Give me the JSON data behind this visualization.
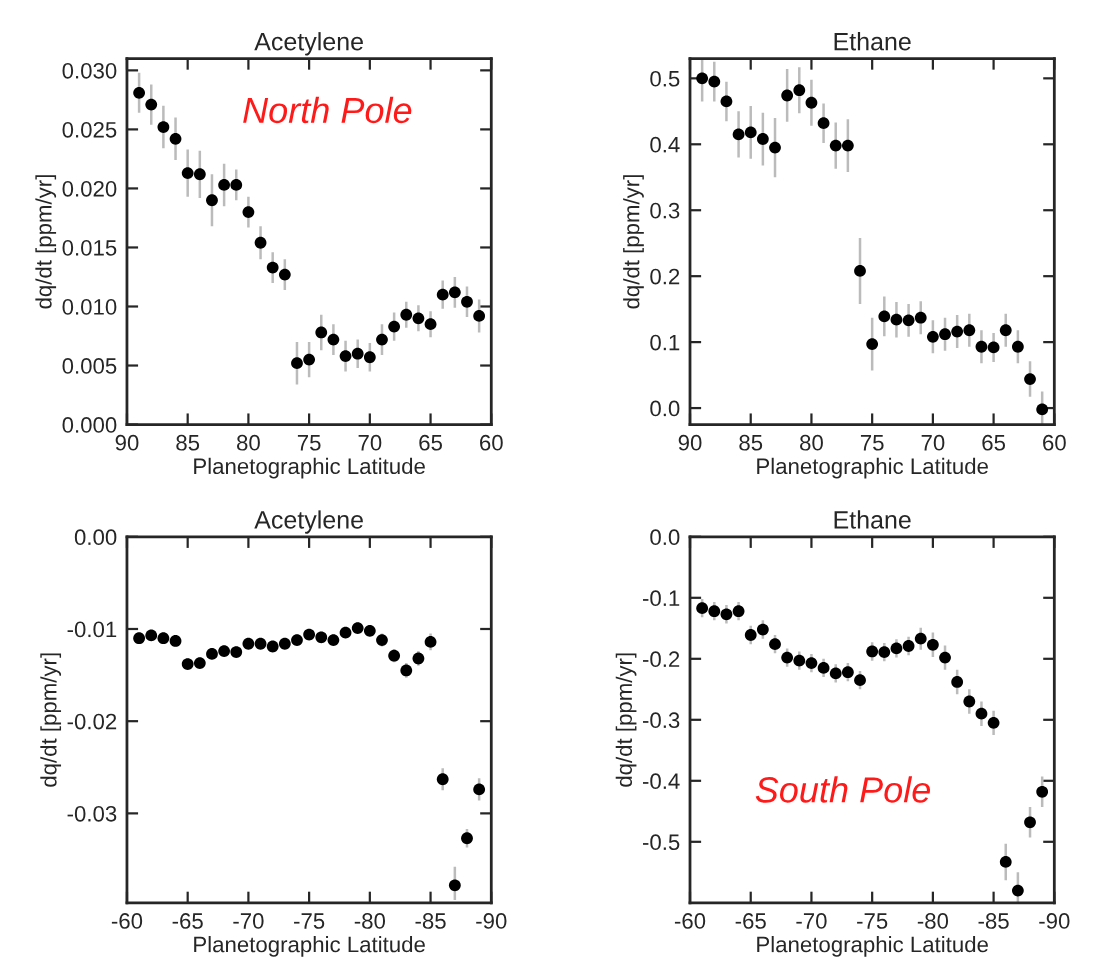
{
  "chart_data": [
    {
      "type": "scatter",
      "title": "Acetylene",
      "xlabel": "Planetographic Latitude",
      "ylabel": "dq/dt [ppm/yr]",
      "annotations": [
        "North Pole"
      ],
      "marker": "circle",
      "grid": false,
      "legend": false,
      "x": [
        89,
        88,
        87,
        86,
        85,
        84,
        83,
        82,
        81,
        80,
        79,
        78,
        77,
        76,
        75,
        74,
        73,
        72,
        71,
        70,
        69,
        68,
        67,
        66,
        65,
        64,
        63,
        62,
        61
      ],
      "series": [
        {
          "color": "#000000",
          "values": [
            0.0281,
            0.0271,
            0.0252,
            0.0242,
            0.0213,
            0.0212,
            0.019,
            0.0203,
            0.0203,
            0.018,
            0.0154,
            0.0133,
            0.0127,
            0.0052,
            0.0055,
            0.0078,
            0.0072,
            0.0058,
            0.006,
            0.0057,
            0.0072,
            0.0083,
            0.0093,
            0.009,
            0.0085,
            0.011,
            0.0112,
            0.0104,
            0.0092
          ],
          "errors": [
            0.0017,
            0.0017,
            0.0018,
            0.0018,
            0.002,
            0.002,
            0.0022,
            0.0018,
            0.0013,
            0.0013,
            0.0014,
            0.0013,
            0.0013,
            0.0018,
            0.0015,
            0.0015,
            0.0013,
            0.0013,
            0.0012,
            0.0012,
            0.0013,
            0.0012,
            0.0011,
            0.0011,
            0.0011,
            0.0012,
            0.0013,
            0.0013,
            0.0014
          ]
        }
      ],
      "xlim": [
        90,
        60
      ],
      "xticks": [
        90,
        85,
        80,
        75,
        70,
        65,
        60
      ],
      "ylim": [
        0,
        0.031
      ],
      "yticks": [
        {
          "value": 0,
          "label": "0.000"
        },
        {
          "value": 0.005,
          "label": "0.005"
        },
        {
          "value": 0.01,
          "label": "0.010"
        },
        {
          "value": 0.015,
          "label": "0.015"
        },
        {
          "value": 0.02,
          "label": "0.020"
        },
        {
          "value": 0.025,
          "label": "0.025"
        },
        {
          "value": 0.03,
          "label": "0.030"
        }
      ]
    },
    {
      "type": "scatter",
      "title": "Ethane",
      "xlabel": "Planetographic Latitude",
      "ylabel": "dq/dt [ppm/yr]",
      "marker": "circle",
      "grid": false,
      "legend": false,
      "x": [
        89,
        88,
        87,
        86,
        85,
        84,
        83,
        82,
        81,
        80,
        79,
        78,
        77,
        76,
        75,
        74,
        73,
        72,
        71,
        70,
        69,
        68,
        67,
        66,
        65,
        64,
        63,
        62,
        61
      ],
      "series": [
        {
          "color": "#000000",
          "values": [
            0.5,
            0.495,
            0.465,
            0.415,
            0.418,
            0.408,
            0.395,
            0.474,
            0.482,
            0.463,
            0.432,
            0.398,
            0.398,
            0.208,
            0.097,
            0.139,
            0.134,
            0.133,
            0.137,
            0.108,
            0.112,
            0.116,
            0.118,
            0.093,
            0.092,
            0.118,
            0.093,
            0.044,
            -0.002
          ],
          "errors": [
            0.035,
            0.03,
            0.03,
            0.035,
            0.04,
            0.04,
            0.045,
            0.04,
            0.035,
            0.035,
            0.03,
            0.035,
            0.04,
            0.05,
            0.04,
            0.03,
            0.027,
            0.025,
            0.025,
            0.025,
            0.025,
            0.025,
            0.025,
            0.025,
            0.022,
            0.025,
            0.025,
            0.027,
            0.027
          ]
        }
      ],
      "xlim": [
        90,
        60
      ],
      "xticks": [
        90,
        85,
        80,
        75,
        70,
        65,
        60
      ],
      "ylim": [
        -0.025,
        0.53
      ],
      "yticks": [
        {
          "value": 0,
          "label": "0.0"
        },
        {
          "value": 0.1,
          "label": "0.1"
        },
        {
          "value": 0.2,
          "label": "0.2"
        },
        {
          "value": 0.3,
          "label": "0.3"
        },
        {
          "value": 0.4,
          "label": "0.4"
        },
        {
          "value": 0.5,
          "label": "0.5"
        }
      ]
    },
    {
      "type": "scatter",
      "title": "Acetylene",
      "xlabel": "Planetographic Latitude",
      "ylabel": "dq/dt [ppm/yr]",
      "marker": "circle",
      "grid": false,
      "legend": false,
      "x": [
        -61,
        -62,
        -63,
        -64,
        -65,
        -66,
        -67,
        -68,
        -69,
        -70,
        -71,
        -72,
        -73,
        -74,
        -75,
        -76,
        -77,
        -78,
        -79,
        -80,
        -81,
        -82,
        -83,
        -84,
        -85,
        -86,
        -87,
        -88,
        -89
      ],
      "series": [
        {
          "color": "#000000",
          "values": [
            -0.011,
            -0.0107,
            -0.011,
            -0.0113,
            -0.0138,
            -0.0137,
            -0.0127,
            -0.0124,
            -0.0125,
            -0.0116,
            -0.0116,
            -0.0119,
            -0.0116,
            -0.0112,
            -0.0106,
            -0.0109,
            -0.0112,
            -0.0104,
            -0.0099,
            -0.0102,
            -0.0112,
            -0.0129,
            -0.0145,
            -0.0132,
            -0.0114,
            -0.0263,
            -0.0378,
            -0.0327,
            -0.0274
          ],
          "errors": [
            0.0006,
            0.0006,
            0.0006,
            0.0006,
            0.0006,
            0.0006,
            0.0006,
            0.0006,
            0.0006,
            0.0006,
            0.0006,
            0.0006,
            0.0006,
            0.0006,
            0.0006,
            0.0006,
            0.0006,
            0.0006,
            0.0006,
            0.0006,
            0.0007,
            0.0007,
            0.0008,
            0.0008,
            0.0009,
            0.0012,
            [
              -0.0394,
              -0.0358
            ],
            0.001,
            0.0012
          ]
        }
      ],
      "xlim": [
        -60,
        -90
      ],
      "xticks": [
        -60,
        -65,
        -70,
        -75,
        -80,
        -85,
        -90
      ],
      "ylim": [
        -0.0397,
        0
      ],
      "yticks": [
        {
          "value": -0.03,
          "label": "-0.03"
        },
        {
          "value": -0.02,
          "label": "-0.02"
        },
        {
          "value": -0.01,
          "label": "-0.01"
        },
        {
          "value": 0,
          "label": "0.00"
        }
      ]
    },
    {
      "type": "scatter",
      "title": "Ethane",
      "xlabel": "Planetographic Latitude",
      "ylabel": "dq/dt [ppm/yr]",
      "annotations": [
        "South Pole"
      ],
      "marker": "circle",
      "grid": false,
      "legend": false,
      "x": [
        -61,
        -62,
        -63,
        -64,
        -65,
        -66,
        -67,
        -68,
        -69,
        -70,
        -71,
        -72,
        -73,
        -74,
        -75,
        -76,
        -77,
        -78,
        -79,
        -80,
        -81,
        -82,
        -83,
        -84,
        -85,
        -86,
        -87,
        -88,
        -89
      ],
      "series": [
        {
          "color": "#000000",
          "values": [
            -0.117,
            -0.122,
            -0.127,
            -0.122,
            -0.161,
            -0.152,
            -0.176,
            -0.198,
            -0.203,
            -0.207,
            -0.215,
            -0.224,
            -0.222,
            -0.235,
            -0.188,
            -0.189,
            -0.183,
            -0.179,
            -0.167,
            -0.177,
            -0.198,
            -0.238,
            -0.27,
            -0.29,
            -0.305,
            -0.533,
            -0.58,
            -0.468,
            -0.418
          ],
          "errors": [
            0.015,
            0.015,
            0.015,
            0.015,
            0.015,
            0.015,
            0.015,
            0.015,
            0.015,
            0.015,
            0.015,
            0.015,
            0.015,
            0.015,
            0.015,
            0.015,
            0.015,
            0.015,
            0.018,
            0.02,
            0.02,
            0.02,
            0.02,
            0.02,
            0.02,
            0.03,
            0.03,
            0.025,
            0.025
          ]
        }
      ],
      "xlim": [
        -60,
        -90
      ],
      "xticks": [
        -60,
        -65,
        -70,
        -75,
        -80,
        -85,
        -90
      ],
      "ylim": [
        -0.6,
        0
      ],
      "yticks": [
        {
          "value": -0.5,
          "label": "-0.5"
        },
        {
          "value": -0.4,
          "label": "-0.4"
        },
        {
          "value": -0.3,
          "label": "-0.3"
        },
        {
          "value": -0.2,
          "label": "-0.2"
        },
        {
          "value": -0.1,
          "label": "-0.1"
        },
        {
          "value": 0,
          "label": "0.0"
        }
      ]
    }
  ]
}
